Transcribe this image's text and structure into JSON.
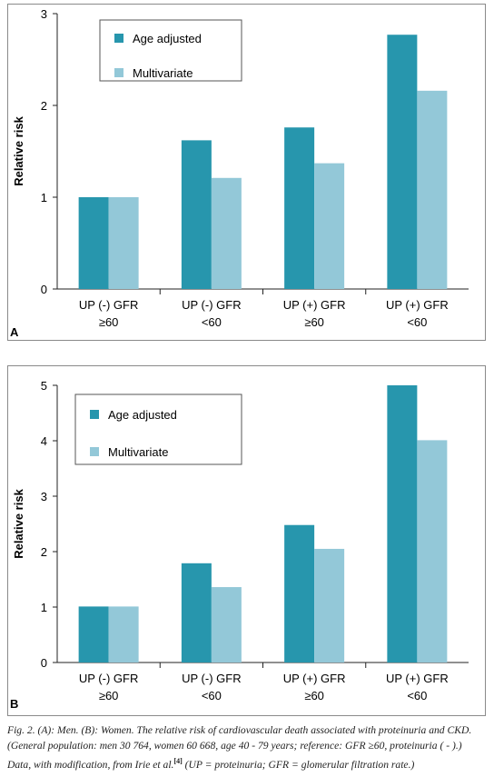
{
  "colors": {
    "age_adjusted": "#2796ad",
    "multivariate": "#93c8d8",
    "axis": "#222222",
    "border": "#8a8a8a"
  },
  "chart_data": [
    {
      "type": "bar",
      "panel_label": "A",
      "categories": [
        [
          "UP (-) GFR",
          "≥60"
        ],
        [
          "UP (-) GFR",
          "<60"
        ],
        [
          "UP (+) GFR",
          "≥60"
        ],
        [
          "UP (+) GFR",
          "<60"
        ]
      ],
      "series": [
        {
          "name": "Age adjusted",
          "values": [
            1.0,
            1.62,
            1.76,
            2.77
          ]
        },
        {
          "name": "Multivariate",
          "values": [
            1.0,
            1.21,
            1.37,
            2.16
          ]
        }
      ],
      "ylabel": "Relative risk",
      "ylim": [
        0,
        3
      ],
      "yticks": [
        0,
        1,
        2,
        3
      ],
      "legend": "top-left"
    },
    {
      "type": "bar",
      "panel_label": "B",
      "categories": [
        [
          "UP (-) GFR",
          "≥60"
        ],
        [
          "UP (-) GFR",
          "<60"
        ],
        [
          "UP (+) GFR",
          "≥60"
        ],
        [
          "UP (+) GFR",
          "<60"
        ]
      ],
      "series": [
        {
          "name": "Age adjusted",
          "values": [
            1.01,
            1.79,
            2.48,
            5.0
          ]
        },
        {
          "name": "Multivariate",
          "values": [
            1.01,
            1.36,
            2.05,
            4.01
          ]
        }
      ],
      "ylabel": "Relative risk",
      "ylim": [
        0,
        5
      ],
      "yticks": [
        0,
        1,
        2,
        3,
        4,
        5
      ],
      "legend": "top-left"
    }
  ],
  "caption": {
    "lead": "Fig. 2. (A): Men. (B): Women. The relative risk of cardiovascular death associated with proteinuria and CKD. (General population: men 30 764, women 60 668, age 40 - 79 years; reference: GFR ≥60, proteinuria ( - ).) Data, with modification, from Irie et al.",
    "ref": "[4]",
    "tail": " (UP = proteinuria; GFR = glomerular filtration rate.)"
  }
}
